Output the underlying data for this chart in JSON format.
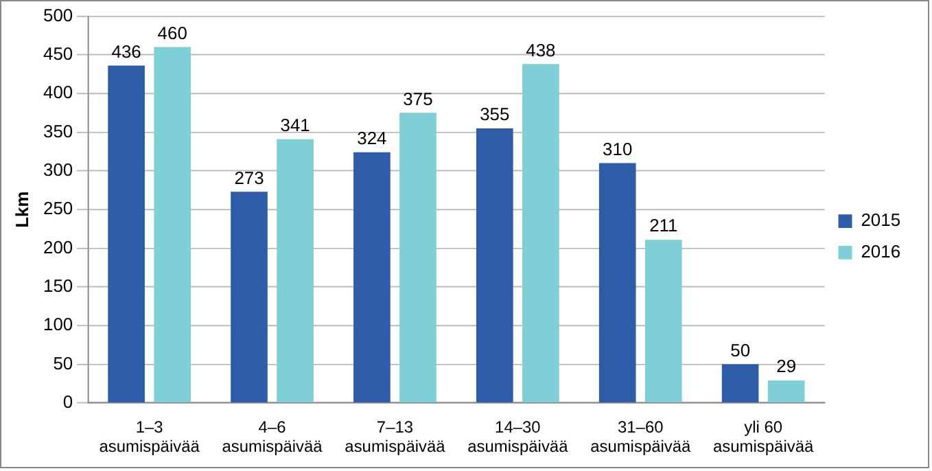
{
  "chart_data": {
    "type": "bar",
    "ylabel": "Lkm",
    "categories": [
      "1–3 asumispäivää",
      "4–6 asumispäivää",
      "7–13 asumispäivää",
      "14–30 asumispäivää",
      "31–60 asumispäivää",
      "yli 60 asumispäivää"
    ],
    "series": [
      {
        "name": "2015",
        "color": "#2e5ca8",
        "values": [
          436,
          273,
          324,
          355,
          310,
          50
        ]
      },
      {
        "name": "2016",
        "color": "#7ed0d6",
        "values": [
          460,
          341,
          375,
          438,
          211,
          29
        ]
      }
    ],
    "ylim": [
      0,
      500
    ],
    "yticks": [
      0,
      50,
      100,
      150,
      200,
      250,
      300,
      350,
      400,
      450,
      500
    ],
    "grid": "y",
    "legend": "right",
    "data_labels": true
  }
}
